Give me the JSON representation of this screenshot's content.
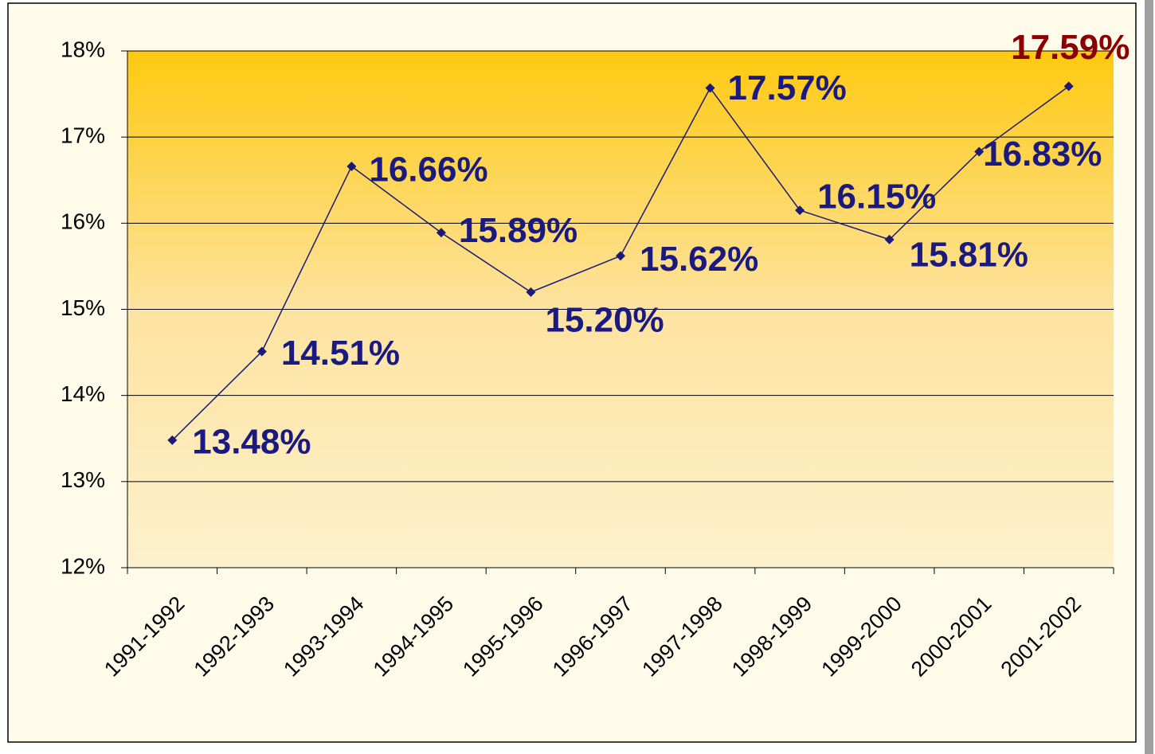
{
  "chart_data": {
    "type": "line",
    "categories": [
      "1991-1992",
      "1992-1993",
      "1993-1994",
      "1994-1995",
      "1995-1996",
      "1996-1997",
      "1997-1998",
      "1998-1999",
      "1999-2000",
      "2000-2001",
      "2001-2002"
    ],
    "series": [
      {
        "color": "#1a1a78",
        "values": [
          13.48,
          14.51,
          16.66,
          15.89,
          15.2,
          15.62,
          17.57,
          16.15,
          15.81,
          16.83,
          17.59
        ],
        "value_labels": [
          "13.48%",
          "14.51%",
          "16.66%",
          "15.89%",
          "15.20%",
          "15.62%",
          "17.57%",
          "16.15%",
          "15.81%",
          "16.83%",
          "17.59%"
        ],
        "value_label_colors": [
          "#1a1a80",
          "#1a1a80",
          "#1a1a80",
          "#1a1a80",
          "#1a1a80",
          "#1a1a80",
          "#1a1a80",
          "#1a1a80",
          "#1a1a80",
          "#1a1a80",
          "#8b0000"
        ]
      }
    ],
    "ylim": [
      12,
      18
    ],
    "yticks": [
      {
        "value": 12,
        "label": "12%"
      },
      {
        "value": 13,
        "label": "13%"
      },
      {
        "value": 14,
        "label": "14%"
      },
      {
        "value": 15,
        "label": "15%"
      },
      {
        "value": 16,
        "label": "16%"
      },
      {
        "value": 17,
        "label": "17%"
      },
      {
        "value": 18,
        "label": "18%"
      }
    ],
    "grid": true
  }
}
